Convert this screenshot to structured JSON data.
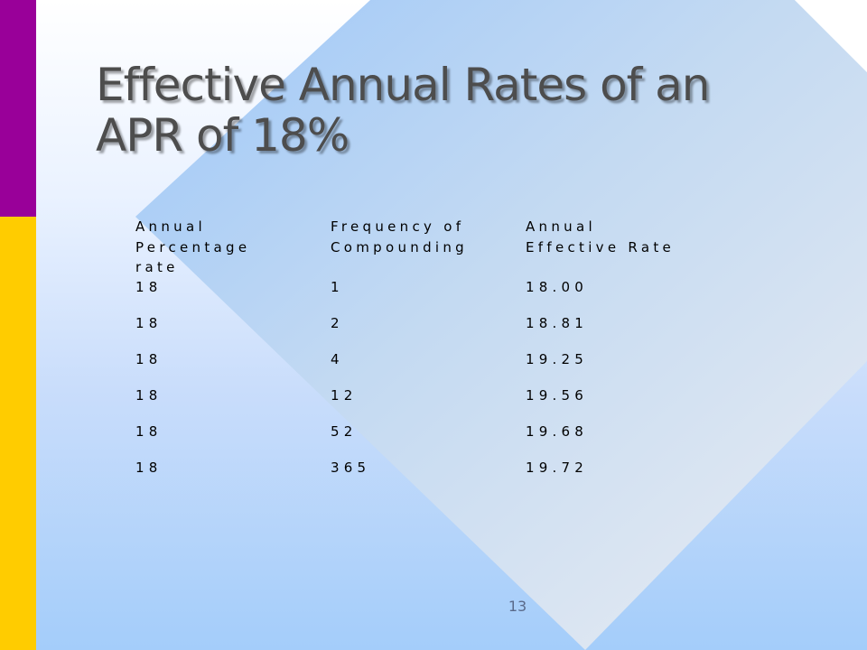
{
  "slide": {
    "title_lines": [
      "Effective Annual Rates of an",
      "APR of 18%"
    ],
    "page_number": "13"
  },
  "table": {
    "headers": [
      [
        "Annual",
        "Percentage",
        "rate"
      ],
      [
        "Frequency of",
        "Compounding"
      ],
      [
        "Annual",
        "Effective Rate"
      ]
    ],
    "rows": [
      [
        "18",
        "1",
        "18.00"
      ],
      [
        "18",
        "2",
        "18.81"
      ],
      [
        "18",
        "4",
        "19.25"
      ],
      [
        "18",
        "12",
        "19.56"
      ],
      [
        "18",
        "52",
        "19.68"
      ],
      [
        "18",
        "365",
        "19.72"
      ]
    ]
  },
  "colors": {
    "bar_top": "#990099",
    "bar_bottom": "#ffcc00",
    "title": "#4d4d4d"
  }
}
